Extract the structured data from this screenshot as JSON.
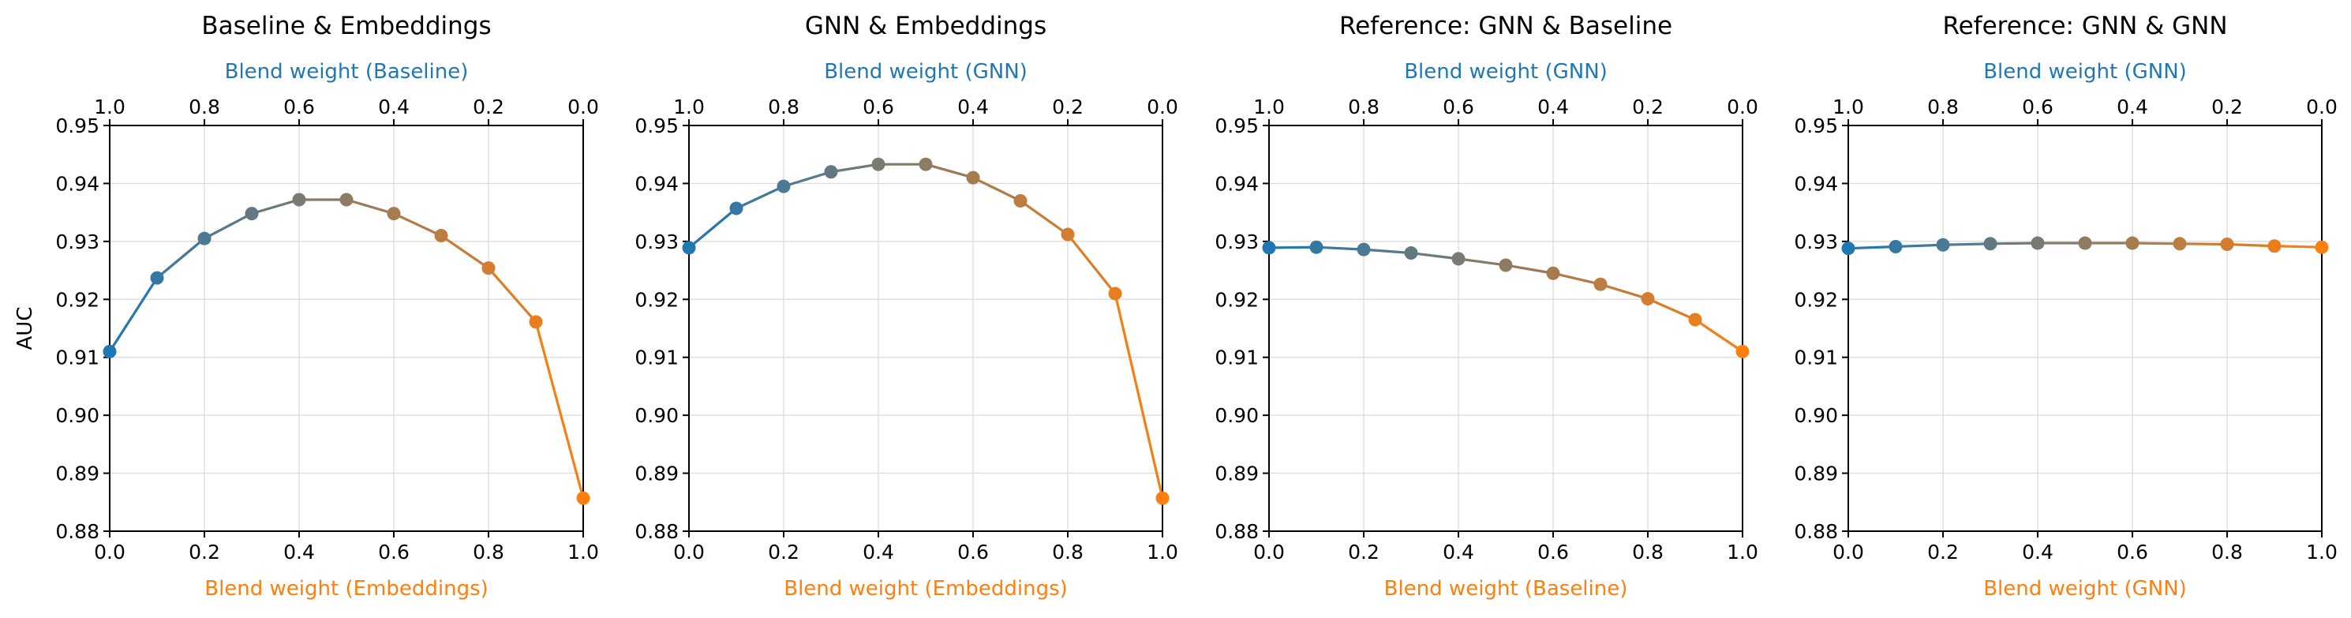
{
  "colors": {
    "start": "#1f77b4",
    "end": "#ff7f0e",
    "top_label": "#1f77b4",
    "bottom_label": "#ff7f0e"
  },
  "chart_data": [
    {
      "type": "line",
      "title": "Baseline & Embeddings",
      "xlabel": "Blend weight (Embeddings)",
      "top_xlabel": "Blend weight (Baseline)",
      "ylabel": "AUC",
      "xlim": [
        0,
        1
      ],
      "ylim": [
        0.88,
        0.95
      ],
      "x": [
        0.0,
        0.1,
        0.2,
        0.3,
        0.4,
        0.5,
        0.6,
        0.7,
        0.8,
        0.9,
        1.0
      ],
      "y": [
        0.911,
        0.9237,
        0.9305,
        0.9348,
        0.9372,
        0.9372,
        0.9348,
        0.931,
        0.9254,
        0.9161,
        0.8857
      ],
      "xticks": [
        "0.0",
        "0.2",
        "0.4",
        "0.6",
        "0.8",
        "1.0"
      ],
      "top_xticks": [
        "1.0",
        "0.8",
        "0.6",
        "0.4",
        "0.2",
        "0.0"
      ],
      "yticks": [
        "0.88",
        "0.89",
        "0.90",
        "0.91",
        "0.92",
        "0.93",
        "0.94",
        "0.95"
      ],
      "grid": true
    },
    {
      "type": "line",
      "title": "GNN & Embeddings",
      "xlabel": "Blend weight (Embeddings)",
      "top_xlabel": "Blend weight (GNN)",
      "ylabel": "",
      "xlim": [
        0,
        1
      ],
      "ylim": [
        0.88,
        0.95
      ],
      "x": [
        0.0,
        0.1,
        0.2,
        0.3,
        0.4,
        0.5,
        0.6,
        0.7,
        0.8,
        0.9,
        1.0
      ],
      "y": [
        0.9289,
        0.9357,
        0.9395,
        0.942,
        0.9433,
        0.9433,
        0.941,
        0.937,
        0.9312,
        0.921,
        0.8857
      ],
      "xticks": [
        "0.0",
        "0.2",
        "0.4",
        "0.6",
        "0.8",
        "1.0"
      ],
      "top_xticks": [
        "1.0",
        "0.8",
        "0.6",
        "0.4",
        "0.2",
        "0.0"
      ],
      "yticks": [
        "0.88",
        "0.89",
        "0.90",
        "0.91",
        "0.92",
        "0.93",
        "0.94",
        "0.95"
      ],
      "grid": true
    },
    {
      "type": "line",
      "title": "Reference: GNN & Baseline",
      "xlabel": "Blend weight (Baseline)",
      "top_xlabel": "Blend weight (GNN)",
      "ylabel": "",
      "xlim": [
        0,
        1
      ],
      "ylim": [
        0.88,
        0.95
      ],
      "x": [
        0.0,
        0.1,
        0.2,
        0.3,
        0.4,
        0.5,
        0.6,
        0.7,
        0.8,
        0.9,
        1.0
      ],
      "y": [
        0.9289,
        0.929,
        0.9286,
        0.928,
        0.927,
        0.9259,
        0.9245,
        0.9226,
        0.9201,
        0.9165,
        0.911
      ],
      "xticks": [
        "0.0",
        "0.2",
        "0.4",
        "0.6",
        "0.8",
        "1.0"
      ],
      "top_xticks": [
        "1.0",
        "0.8",
        "0.6",
        "0.4",
        "0.2",
        "0.0"
      ],
      "yticks": [
        "0.88",
        "0.89",
        "0.90",
        "0.91",
        "0.92",
        "0.93",
        "0.94",
        "0.95"
      ],
      "grid": true
    },
    {
      "type": "line",
      "title": "Reference: GNN & GNN",
      "xlabel": "Blend weight (GNN)",
      "top_xlabel": "Blend weight (GNN)",
      "ylabel": "",
      "xlim": [
        0,
        1
      ],
      "ylim": [
        0.88,
        0.95
      ],
      "x": [
        0.0,
        0.1,
        0.2,
        0.3,
        0.4,
        0.5,
        0.6,
        0.7,
        0.8,
        0.9,
        1.0
      ],
      "y": [
        0.9288,
        0.9291,
        0.9294,
        0.9296,
        0.9297,
        0.9297,
        0.9297,
        0.9296,
        0.9295,
        0.9292,
        0.929
      ],
      "xticks": [
        "0.0",
        "0.2",
        "0.4",
        "0.6",
        "0.8",
        "1.0"
      ],
      "top_xticks": [
        "1.0",
        "0.8",
        "0.6",
        "0.4",
        "0.2",
        "0.0"
      ],
      "yticks": [
        "0.88",
        "0.89",
        "0.90",
        "0.91",
        "0.92",
        "0.93",
        "0.94",
        "0.95"
      ],
      "grid": true
    }
  ]
}
